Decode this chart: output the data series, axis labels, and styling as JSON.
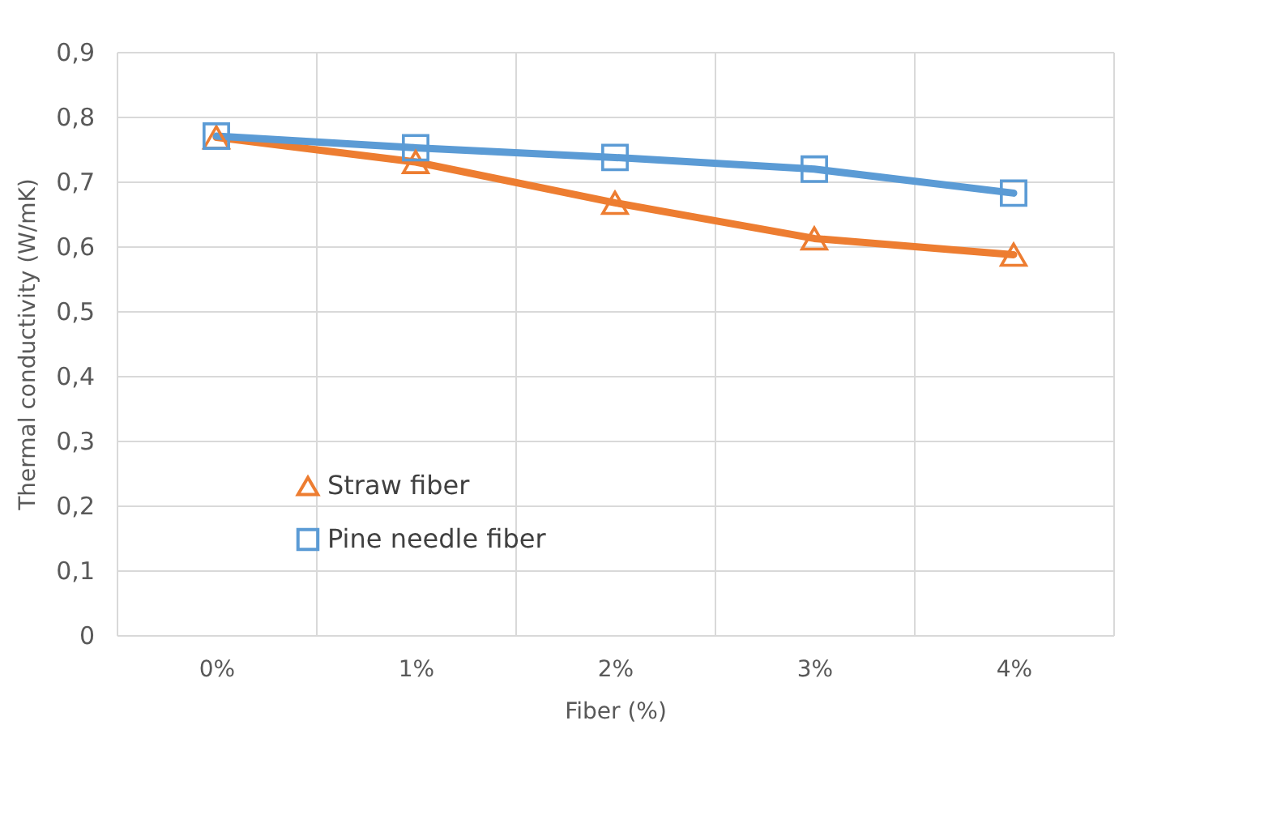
{
  "chart_data": {
    "type": "line",
    "xlabel": "Fiber (%)",
    "ylabel": "Thermal conductivity (W/mK)",
    "categories": [
      "0%",
      "1%",
      "2%",
      "3%",
      "4%"
    ],
    "series": [
      {
        "name": "Straw fiber",
        "color": "#ed7d31",
        "marker": "triangle",
        "values": [
          0.768,
          0.73,
          0.667,
          0.612,
          0.587
        ]
      },
      {
        "name": "Pine needle fiber",
        "color": "#5b9bd5",
        "marker": "square",
        "values": [
          0.77,
          0.752,
          0.737,
          0.719,
          0.682
        ]
      }
    ],
    "ylim": [
      0,
      0.9
    ],
    "yticks": [
      0,
      {
        "value": 0.1,
        "label": "0,1"
      },
      {
        "value": 0.2,
        "label": "0,2"
      },
      {
        "value": 0.3,
        "label": "0,3"
      },
      {
        "value": 0.4,
        "label": "0,4"
      },
      {
        "value": 0.5,
        "label": "0,5"
      },
      {
        "value": 0.6,
        "label": "0,6"
      },
      {
        "value": 0.7,
        "label": "0,7"
      },
      {
        "value": 0.8,
        "label": "0,8"
      },
      {
        "value": 0.9,
        "label": "0,9"
      }
    ],
    "grid": true,
    "legend": "bottom left",
    "line_style": "solid"
  }
}
